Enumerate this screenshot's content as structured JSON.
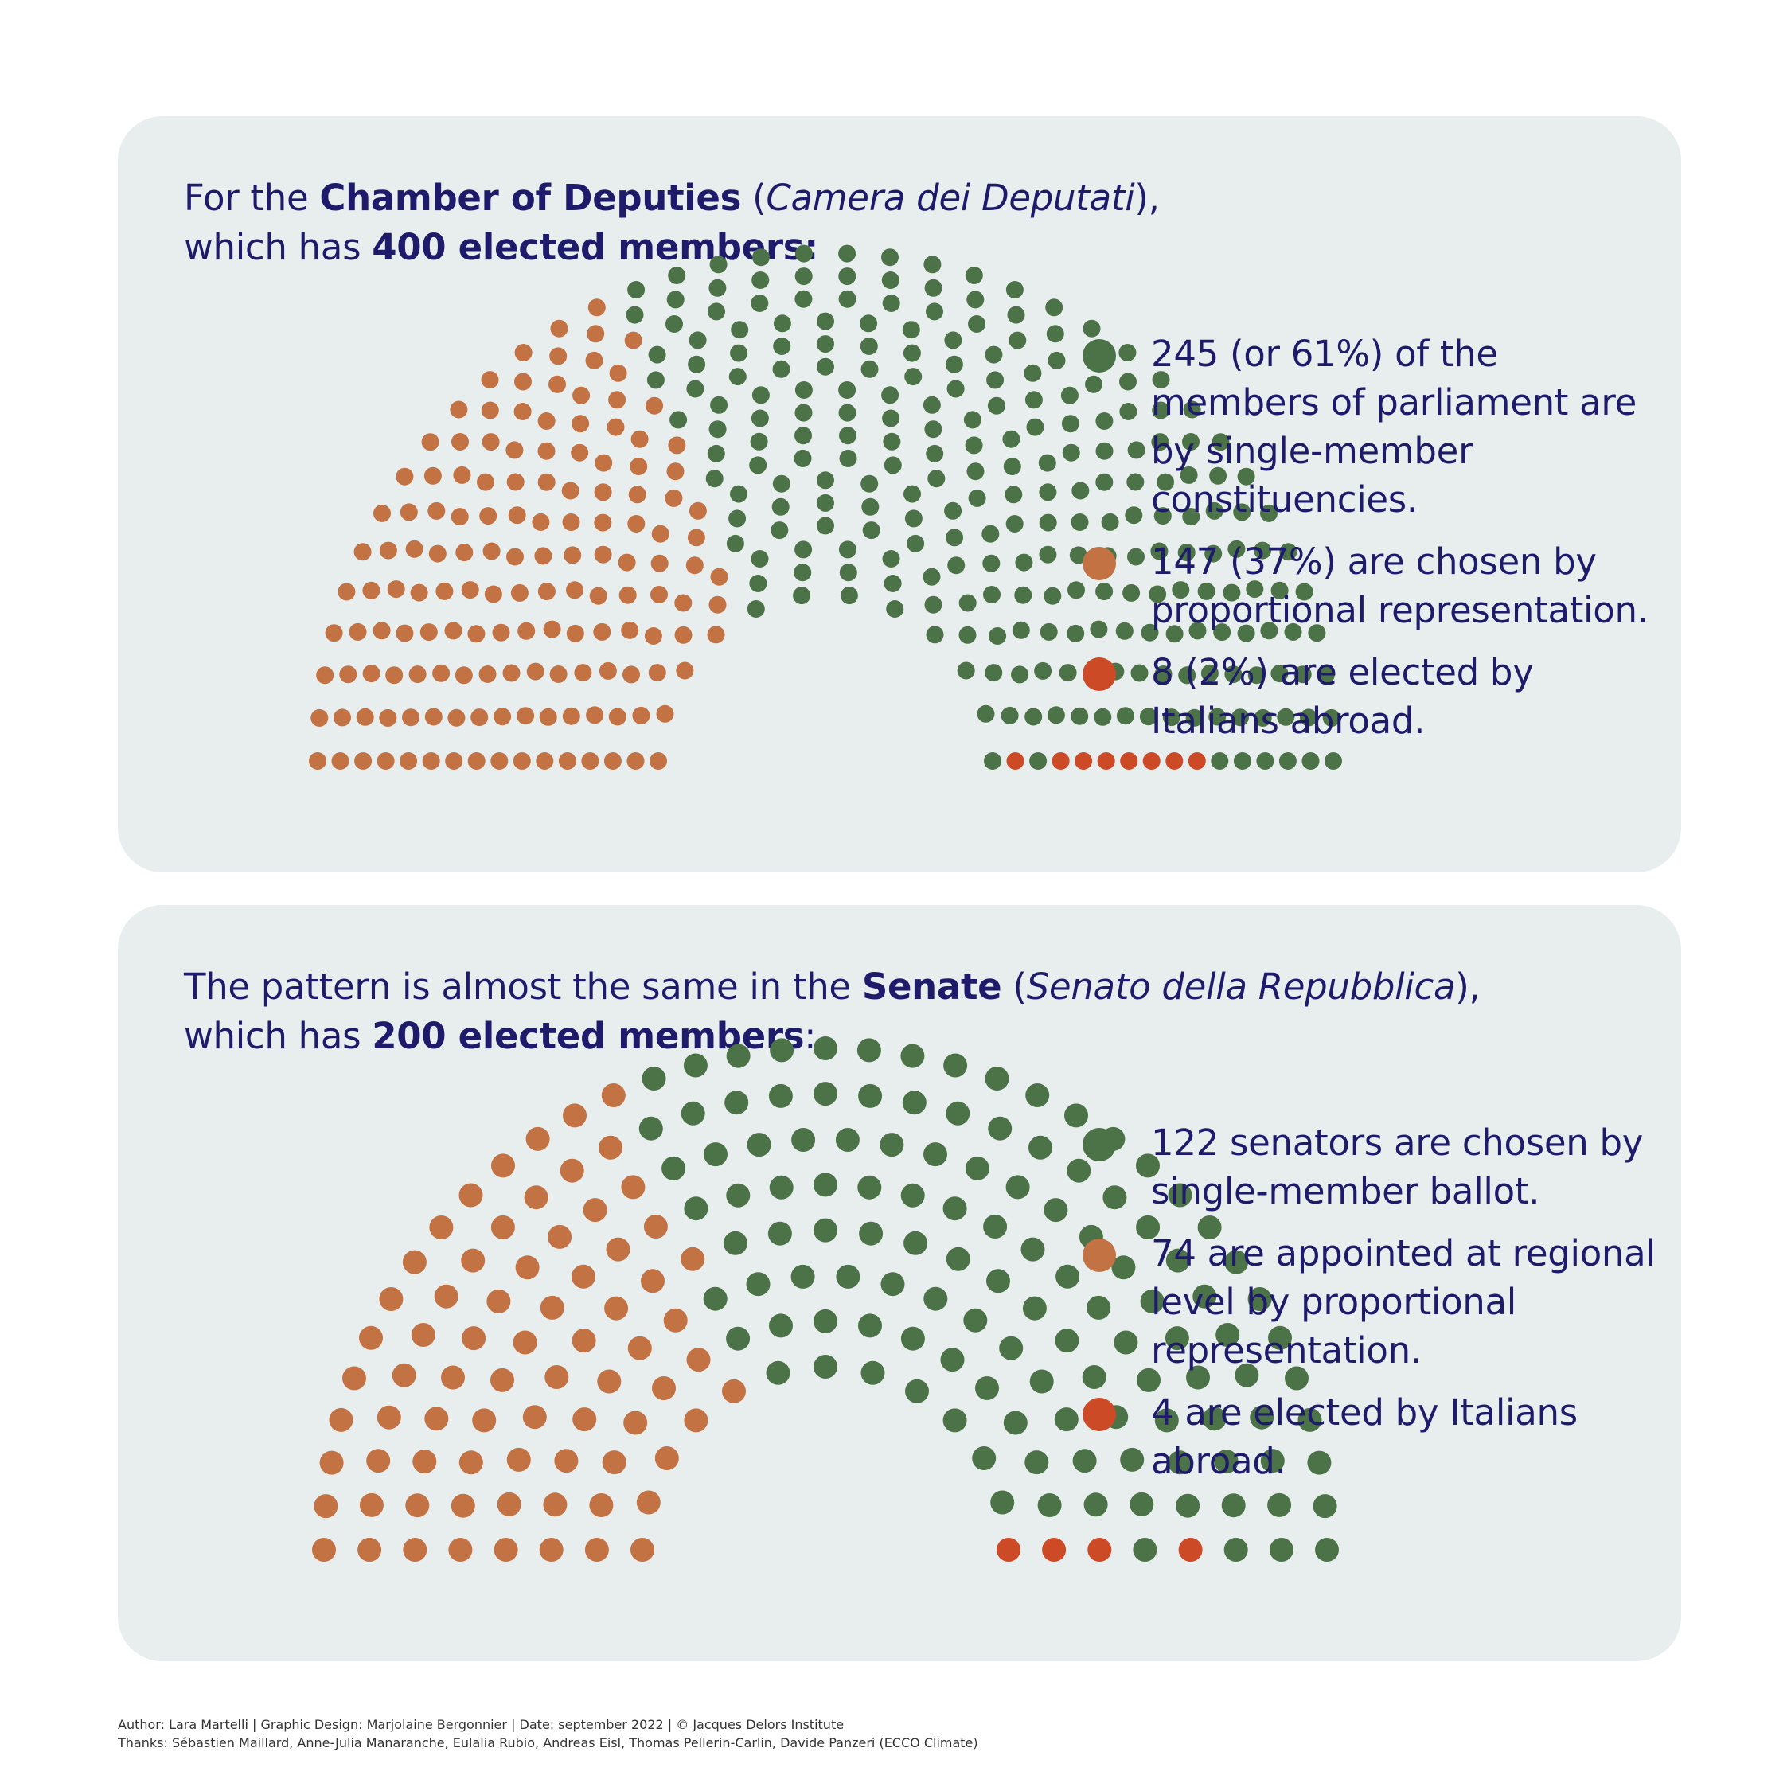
{
  "colors": {
    "single_member": "#4c7347",
    "proportional": "#c37244",
    "abroad": "#cc4a26",
    "panel": "#e8edee",
    "text": "#1e1b6b"
  },
  "chamber": {
    "heading": {
      "t1": "For the ",
      "b1": "Chamber of Deputies",
      "t2": " (",
      "i1": "Camera dei Deputati",
      "t3": "),",
      "t4": "which has ",
      "b2": "400 elected members:"
    },
    "legend": [
      {
        "text": "245 (or 61%) of the members of parliament are by single-member constituencies."
      },
      {
        "text": "147 (37%) are chosen by proportional representation."
      },
      {
        "text": "8 (2%) are elected by Italians abroad."
      }
    ]
  },
  "senate": {
    "heading": {
      "t1": "The pattern is almost the same in the ",
      "b1": "Senate",
      "t2": " (",
      "i1": "Senato della Repubblica",
      "t3": "),",
      "t4": "which has ",
      "b2": "200 elected members",
      "t5": ":"
    },
    "legend": [
      {
        "text": "122 senators are chosen by single-member ballot."
      },
      {
        "text": "74 are appointed at regional level by proportional representation."
      },
      {
        "text": "4 are elected by Italians abroad."
      }
    ]
  },
  "chart_data": [
    {
      "type": "parliament",
      "total": 400,
      "series": [
        {
          "name": "Single-member constituencies",
          "value": 245
        },
        {
          "name": "Proportional representation",
          "value": 147
        },
        {
          "name": "Italians abroad",
          "value": 8
        }
      ]
    },
    {
      "type": "parliament",
      "total": 200,
      "series": [
        {
          "name": "Single-member ballot",
          "value": 122
        },
        {
          "name": "Regional level proportional representation",
          "value": 74
        },
        {
          "name": "Italians abroad",
          "value": 4
        }
      ]
    }
  ],
  "footer": {
    "line1": "Author: Lara Martelli  |  Graphic Design: Marjolaine Bergonnier  |  Date: september 2022  |  © Jacques Delors Institute",
    "line2": "Thanks: Sébastien Maillard, Anne-Julia Manaranche, Eulalia Rubio, Andreas Eisl, Thomas Pellerin-Carlin, Davide Panzeri (ECCO Climate)"
  }
}
